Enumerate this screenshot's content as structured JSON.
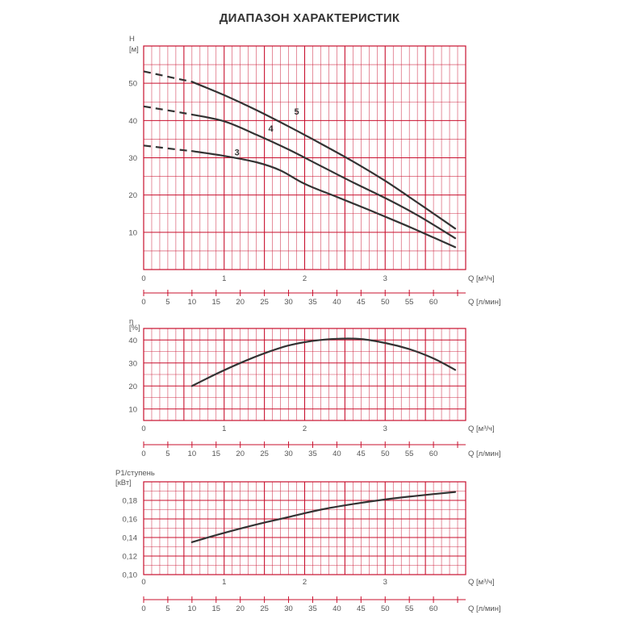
{
  "title": "ДИАПАЗОН ХАРАКТЕРИСТИК",
  "chart_data": [
    {
      "type": "line",
      "ylabel_top": "H",
      "ylabel_unit": "[м]",
      "x_m3h_label": "Q [м³/ч]",
      "x_lmin_label": "Q [л/мин]",
      "ylim": [
        0,
        60
      ],
      "y_ticks": [
        "10",
        "20",
        "30",
        "40",
        "50"
      ],
      "y_tick_values": [
        10,
        20,
        30,
        40,
        50
      ],
      "x_m3h_ticks": [
        "0",
        "1",
        "2",
        "3"
      ],
      "x_m3h_values": [
        0,
        1,
        2,
        3
      ],
      "x_lmin_ticks": [
        "0",
        "5",
        "10",
        "15",
        "20",
        "25",
        "30",
        "35",
        "40",
        "45",
        "50",
        "55",
        "60"
      ],
      "x_lmin_values": [
        0,
        5,
        10,
        15,
        20,
        25,
        30,
        35,
        40,
        45,
        50,
        55,
        60
      ],
      "grid": true,
      "series": [
        {
          "name": "5",
          "dashed": [
            [
              0,
              53.2
            ],
            [
              0.42,
              51.2
            ],
            [
              0.6,
              50.4
            ]
          ],
          "x": [
            0.6,
            1.0,
            1.4,
            1.8,
            2.2,
            2.6,
            3.0,
            3.4,
            3.87
          ],
          "y": [
            50.4,
            46.8,
            42.8,
            38.4,
            33.8,
            29.0,
            23.8,
            18.0,
            11.0
          ],
          "label_at": [
            1.9,
            41.6
          ]
        },
        {
          "name": "4",
          "dashed": [
            [
              0,
              43.8
            ],
            [
              0.42,
              42.3
            ],
            [
              0.6,
              41.6
            ]
          ],
          "x": [
            0.6,
            1.0,
            1.4,
            1.8,
            2.2,
            2.6,
            3.0,
            3.4,
            3.87
          ],
          "y": [
            41.6,
            39.8,
            36.2,
            32.2,
            27.8,
            23.4,
            19.2,
            14.6,
            8.4
          ],
          "label_at": [
            1.58,
            37.0
          ]
        },
        {
          "name": "3",
          "dashed": [
            [
              0,
              33.3
            ],
            [
              0.42,
              32.2
            ],
            [
              0.6,
              31.8
            ]
          ],
          "x": [
            0.6,
            1.0,
            1.4,
            1.7,
            2.0,
            2.4,
            2.8,
            3.2,
            3.6,
            3.87
          ],
          "y": [
            31.8,
            30.5,
            28.8,
            26.6,
            23.0,
            19.5,
            16.0,
            12.4,
            8.6,
            6.0
          ],
          "label_at": [
            1.16,
            30.6
          ]
        }
      ]
    },
    {
      "type": "line",
      "ylabel_top": "η",
      "ylabel_unit": "[%]",
      "x_m3h_label": "Q [м³/ч]",
      "x_lmin_label": "Q [л/мин]",
      "ylim": [
        5,
        45
      ],
      "y_ticks": [
        "10",
        "20",
        "30",
        "40"
      ],
      "y_tick_values": [
        10,
        20,
        30,
        40
      ],
      "x_m3h_ticks": [
        "0",
        "1",
        "2",
        "3"
      ],
      "x_m3h_values": [
        0,
        1,
        2,
        3
      ],
      "x_lmin_ticks": [
        "0",
        "5",
        "10",
        "15",
        "20",
        "25",
        "30",
        "35",
        "40",
        "45",
        "50",
        "55",
        "60"
      ],
      "x_lmin_values": [
        0,
        5,
        10,
        15,
        20,
        25,
        30,
        35,
        40,
        45,
        50,
        55,
        60
      ],
      "grid": true,
      "series": [
        {
          "x": [
            0.6,
            0.9,
            1.2,
            1.5,
            1.8,
            2.1,
            2.4,
            2.7,
            3.0,
            3.3,
            3.6,
            3.87
          ],
          "y": [
            20.0,
            25.2,
            30.0,
            34.2,
            37.6,
            39.6,
            40.5,
            40.4,
            38.7,
            36.0,
            32.0,
            27.0
          ]
        }
      ]
    },
    {
      "type": "line",
      "ylabel_top": "P1/ступень",
      "ylabel_unit": "[кВт]",
      "x_m3h_label": "Q [м³/ч]",
      "x_lmin_label": "Q [л/мин]",
      "ylim": [
        0.1,
        0.2
      ],
      "y_ticks": [
        "0,10",
        "0,12",
        "0,14",
        "0,16",
        "0,18"
      ],
      "y_tick_values": [
        0.1,
        0.12,
        0.14,
        0.16,
        0.18
      ],
      "x_m3h_ticks": [
        "0",
        "1",
        "2",
        "3"
      ],
      "x_m3h_values": [
        0,
        1,
        2,
        3
      ],
      "x_lmin_ticks": [
        "0",
        "5",
        "10",
        "15",
        "20",
        "25",
        "30",
        "35",
        "40",
        "45",
        "50",
        "55",
        "60"
      ],
      "x_lmin_values": [
        0,
        5,
        10,
        15,
        20,
        25,
        30,
        35,
        40,
        45,
        50,
        55,
        60
      ],
      "grid": true,
      "series": [
        {
          "x": [
            0.6,
            1.0,
            1.4,
            1.8,
            2.2,
            2.6,
            3.0,
            3.4,
            3.87
          ],
          "y": [
            0.135,
            0.145,
            0.154,
            0.162,
            0.17,
            0.176,
            0.181,
            0.185,
            0.189
          ]
        }
      ]
    }
  ],
  "colors": {
    "grid": "#c8102e",
    "curve": "#333333",
    "text": "#555555"
  }
}
